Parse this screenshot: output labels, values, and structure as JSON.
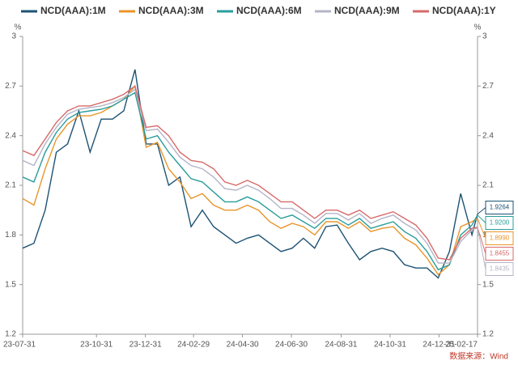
{
  "chart_data": {
    "type": "line",
    "y_unit": "%",
    "source": "数据来源：Wind",
    "xlim": [
      "23-07-31",
      "25-02-17"
    ],
    "xticks": [
      "23-07-31",
      "23-10-31",
      "23-12-31",
      "24-02-29",
      "24-04-30",
      "24-06-30",
      "24-08-31",
      "24-10-31",
      "24-12-31",
      "25-02-17"
    ],
    "ylim": [
      1.2,
      3
    ],
    "yticks": [
      1.2,
      1.5,
      1.8,
      2.1,
      2.4,
      2.7,
      3
    ],
    "grid": false,
    "legend": "top",
    "x": [
      "23-07-31",
      "23-08-14",
      "23-08-28",
      "23-09-11",
      "23-09-25",
      "23-10-09",
      "23-10-23",
      "23-11-06",
      "23-11-20",
      "23-12-04",
      "23-12-18",
      "24-01-01",
      "24-01-15",
      "24-01-29",
      "24-02-12",
      "24-02-26",
      "24-03-11",
      "24-03-25",
      "24-04-08",
      "24-04-22",
      "24-05-06",
      "24-05-20",
      "24-06-03",
      "24-06-17",
      "24-07-01",
      "24-07-15",
      "24-07-29",
      "24-08-12",
      "24-08-26",
      "24-09-09",
      "24-09-23",
      "24-10-07",
      "24-10-21",
      "24-11-04",
      "24-11-18",
      "24-12-02",
      "24-12-16",
      "24-12-30",
      "25-01-13",
      "25-01-27",
      "25-02-10",
      "25-02-17"
    ],
    "series": [
      {
        "name": "NCD(AAA):1M",
        "color": "#1d5274",
        "last_label": "1.9264",
        "values": [
          1.72,
          1.75,
          1.95,
          2.3,
          2.35,
          2.55,
          2.3,
          2.5,
          2.5,
          2.55,
          2.8,
          2.35,
          2.35,
          2.1,
          2.15,
          1.85,
          1.95,
          1.85,
          1.8,
          1.75,
          1.78,
          1.8,
          1.75,
          1.7,
          1.72,
          1.78,
          1.72,
          1.85,
          1.86,
          1.75,
          1.65,
          1.7,
          1.72,
          1.7,
          1.62,
          1.6,
          1.6,
          1.54,
          1.7,
          2.05,
          1.8,
          1.9264
        ]
      },
      {
        "name": "NCD(AAA):3M",
        "color": "#e8952a",
        "last_label": "1.8990",
        "values": [
          2.02,
          1.98,
          2.2,
          2.38,
          2.47,
          2.52,
          2.52,
          2.54,
          2.58,
          2.62,
          2.7,
          2.33,
          2.36,
          2.2,
          2.12,
          2.02,
          2.05,
          1.98,
          1.95,
          1.95,
          1.98,
          1.95,
          1.88,
          1.84,
          1.87,
          1.85,
          1.8,
          1.88,
          1.88,
          1.84,
          1.88,
          1.82,
          1.84,
          1.85,
          1.78,
          1.74,
          1.66,
          1.56,
          1.62,
          1.85,
          1.88,
          1.899
        ]
      },
      {
        "name": "NCD(AAA):6M",
        "color": "#2a9d9b",
        "last_label": "1.9200",
        "values": [
          2.15,
          2.12,
          2.3,
          2.42,
          2.5,
          2.54,
          2.55,
          2.56,
          2.58,
          2.62,
          2.66,
          2.38,
          2.4,
          2.3,
          2.22,
          2.14,
          2.12,
          2.06,
          2.0,
          2.0,
          2.03,
          2.0,
          1.95,
          1.9,
          1.92,
          1.88,
          1.84,
          1.9,
          1.9,
          1.86,
          1.9,
          1.84,
          1.86,
          1.88,
          1.82,
          1.78,
          1.7,
          1.59,
          1.62,
          1.8,
          1.86,
          1.92
        ]
      },
      {
        "name": "NCD(AAA):9M",
        "color": "#b4b4c8",
        "last_label": "1.8435",
        "values": [
          2.25,
          2.22,
          2.35,
          2.45,
          2.53,
          2.56,
          2.57,
          2.58,
          2.6,
          2.63,
          2.68,
          2.43,
          2.44,
          2.36,
          2.27,
          2.22,
          2.2,
          2.15,
          2.08,
          2.07,
          2.1,
          2.07,
          2.02,
          1.96,
          1.96,
          1.92,
          1.87,
          1.93,
          1.93,
          1.89,
          1.93,
          1.87,
          1.9,
          1.92,
          1.87,
          1.83,
          1.75,
          1.63,
          1.63,
          1.76,
          1.83,
          1.8435
        ]
      },
      {
        "name": "NCD(AAA):1Y",
        "color": "#d86a6a",
        "last_label": "1.8455",
        "values": [
          2.31,
          2.28,
          2.38,
          2.48,
          2.55,
          2.58,
          2.58,
          2.6,
          2.62,
          2.65,
          2.7,
          2.45,
          2.46,
          2.4,
          2.3,
          2.25,
          2.24,
          2.2,
          2.12,
          2.1,
          2.13,
          2.1,
          2.05,
          2.0,
          2.0,
          1.95,
          1.9,
          1.95,
          1.95,
          1.92,
          1.95,
          1.9,
          1.92,
          1.94,
          1.9,
          1.86,
          1.78,
          1.66,
          1.65,
          1.78,
          1.84,
          1.8455
        ]
      }
    ]
  }
}
